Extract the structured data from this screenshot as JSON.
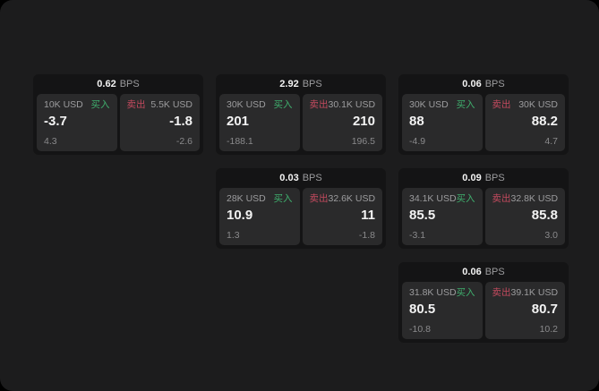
{
  "theme": {
    "page_bg": "#1c1c1d",
    "card_bg": "#141415",
    "pane_bg": "#2a2a2b",
    "text_primary": "#f3f3f3",
    "text_secondary": "#9c9c9e",
    "text_muted": "#8a8a8c",
    "buy_color": "#3fae6d",
    "sell_color": "#c34a5e"
  },
  "labels": {
    "buy": "买入",
    "sell": "卖出",
    "bps_unit": "BPS"
  },
  "cards": [
    {
      "bps": "0.62",
      "buy": {
        "amount": "10K USD",
        "value": "-3.7",
        "delta": "4.3"
      },
      "sell": {
        "amount": "5.5K USD",
        "value": "-1.8",
        "delta": "-2.6"
      }
    },
    {
      "bps": "2.92",
      "buy": {
        "amount": "30K USD",
        "value": "201",
        "delta": "-188.1"
      },
      "sell": {
        "amount": "30.1K USD",
        "value": "210",
        "delta": "196.5"
      }
    },
    {
      "bps": "0.06",
      "buy": {
        "amount": "30K USD",
        "value": "88",
        "delta": "-4.9"
      },
      "sell": {
        "amount": "30K USD",
        "value": "88.2",
        "delta": "4.7"
      }
    },
    {
      "bps": "0.03",
      "buy": {
        "amount": "28K USD",
        "value": "10.9",
        "delta": "1.3"
      },
      "sell": {
        "amount": "32.6K USD",
        "value": "11",
        "delta": "-1.8"
      }
    },
    {
      "bps": "0.09",
      "buy": {
        "amount": "34.1K USD",
        "value": "85.5",
        "delta": "-3.1"
      },
      "sell": {
        "amount": "32.8K USD",
        "value": "85.8",
        "delta": "3.0"
      }
    },
    {
      "bps": "0.06",
      "buy": {
        "amount": "31.8K USD",
        "value": "80.5",
        "delta": "-10.8"
      },
      "sell": {
        "amount": "39.1K USD",
        "value": "80.7",
        "delta": "10.2"
      }
    }
  ]
}
